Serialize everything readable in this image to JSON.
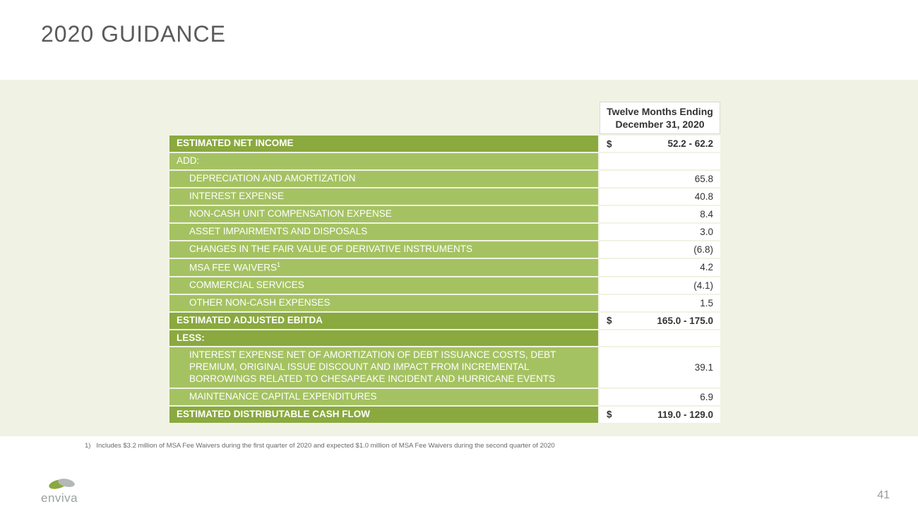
{
  "page": {
    "title": "2020 GUIDANCE",
    "page_number": "41",
    "footnote_marker": "1)",
    "footnote_text": "Includes $3.2 million of MSA Fee Waivers during the first quarter of 2020 and expected $1.0 million of MSA Fee Waivers during the second quarter of 2020"
  },
  "logo": {
    "text": "enviva",
    "leaf_color_green": "#8aa93f",
    "leaf_color_gray": "#b4b8b8"
  },
  "table": {
    "header": "Twelve Months Ending December 31, 2020",
    "rows": [
      {
        "label": "ESTIMATED NET INCOME",
        "value": "52.2 - 62.2",
        "currency": "$",
        "shade": "dark",
        "bold": true,
        "indent": false
      },
      {
        "label": "ADD:",
        "value": "",
        "currency": "",
        "shade": "light",
        "bold": false,
        "indent": false
      },
      {
        "label": "DEPRECIATION AND AMORTIZATION",
        "value": "65.8",
        "currency": "",
        "shade": "light",
        "bold": false,
        "indent": true
      },
      {
        "label": "INTEREST EXPENSE",
        "value": "40.8",
        "currency": "",
        "shade": "light",
        "bold": false,
        "indent": true
      },
      {
        "label": "NON-CASH UNIT COMPENSATION EXPENSE",
        "value": "8.4",
        "currency": "",
        "shade": "light",
        "bold": false,
        "indent": true
      },
      {
        "label": "ASSET IMPAIRMENTS AND DISPOSALS",
        "value": "3.0",
        "currency": "",
        "shade": "light",
        "bold": false,
        "indent": true
      },
      {
        "label": "CHANGES IN THE FAIR VALUE OF DERIVATIVE INSTRUMENTS",
        "value": "(6.8)",
        "currency": "",
        "shade": "light",
        "bold": false,
        "indent": true
      },
      {
        "label": "MSA FEE WAIVERS",
        "value": "4.2",
        "currency": "",
        "shade": "light",
        "bold": false,
        "indent": true,
        "sup": "1"
      },
      {
        "label": "COMMERCIAL SERVICES",
        "value": "(4.1)",
        "currency": "",
        "shade": "light",
        "bold": false,
        "indent": true
      },
      {
        "label": "OTHER NON-CASH EXPENSES",
        "value": "1.5",
        "currency": "",
        "shade": "light",
        "bold": false,
        "indent": true
      },
      {
        "label": "ESTIMATED ADJUSTED EBITDA",
        "value": "165.0 - 175.0",
        "currency": "$",
        "shade": "dark",
        "bold": true,
        "indent": false
      },
      {
        "label": "LESS:",
        "value": "",
        "currency": "",
        "shade": "dark",
        "bold": true,
        "indent": false
      },
      {
        "label": "INTEREST EXPENSE NET OF AMORTIZATION OF DEBT ISSUANCE COSTS, DEBT PREMIUM, ORIGINAL ISSUE DISCOUNT AND IMPACT FROM INCREMENTAL BORROWINGS RELATED TO CHESAPEAKE INCIDENT AND HURRICANE EVENTS",
        "value": "39.1",
        "currency": "",
        "shade": "light",
        "bold": false,
        "indent": true,
        "tall": true
      },
      {
        "label": "MAINTENANCE CAPITAL EXPENDITURES",
        "value": "6.9",
        "currency": "",
        "shade": "light",
        "bold": false,
        "indent": true
      },
      {
        "label": "ESTIMATED DISTRIBUTABLE CASH FLOW",
        "value": "119.0 - 129.0",
        "currency": "$",
        "shade": "dark",
        "bold": true,
        "indent": false
      }
    ]
  },
  "colors": {
    "band_bg": "#f0f3e3",
    "row_dark": "#8aa93f",
    "row_light": "#a5c262",
    "title_color": "#5a5a5a"
  }
}
